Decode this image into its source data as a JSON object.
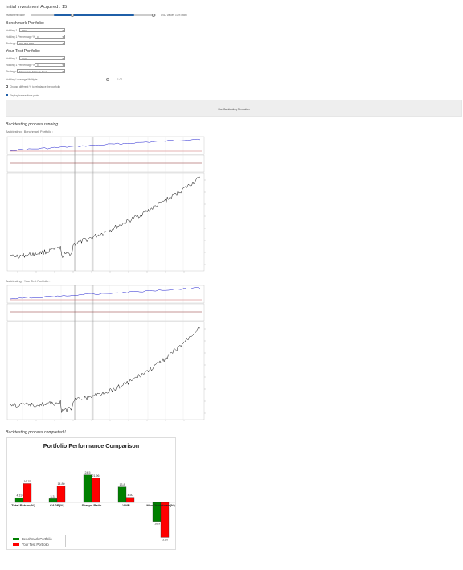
{
  "investment": {
    "title": "Initial Investment Acquired : 15",
    "slider_left_label": "investment value",
    "slider_right_label_a": "USD Values",
    "slider_right_label_b": "10% width",
    "fill_fraction": 0.52
  },
  "benchmark": {
    "heading": "Benchmark Portfolio:",
    "fields": [
      {
        "label": "Holding 1 :",
        "value": "SPY"
      },
      {
        "label": "Holding 1 Percentage % :",
        "value": "0"
      },
      {
        "label": "Strategy:",
        "value": "Buy and Hold"
      }
    ]
  },
  "test": {
    "heading": "Your Test Portfolio:",
    "fields": [
      {
        "label": "Holding 1 :",
        "value": "QQQ"
      },
      {
        "label": "Holding 1 Percentage % :",
        "value": "0"
      },
      {
        "label": "Strategy:",
        "value": "Momentum Strategy Mode"
      }
    ],
    "leverage_label": "Holding Leverage Multiple:",
    "leverage_value": "1.00",
    "leverage_fill_fraction": 0.6
  },
  "checkbox1": {
    "label": "Choose different % to rebalance the portfolio",
    "checked": false
  },
  "checkbox2": {
    "label": "Display transactions plots",
    "checked": true
  },
  "run_button": {
    "label": "Run Backtesting Simulation"
  },
  "status_running": "Backtesting process running....",
  "bench_title": "Backtesting : Benchmark Portfolio :",
  "test_title": "Backtesting : Your Test Portfolio :",
  "status_done": "Backtesting process completed !",
  "comparison": {
    "title": "Portfolio Performance Comparison",
    "categories": [
      "Total Return(%)",
      "CAGR(%)",
      "Sharpe Ratio",
      "VWR",
      "Max Drawdown(%)"
    ],
    "benchmark_values": [
      "4.19",
      "3.31",
      "24.5",
      "13.8",
      "-16.9"
    ],
    "test_values": [
      "16.79",
      "14.80",
      "21.96",
      "4.50",
      "-31.0"
    ],
    "legend_benchmark": "Benchmark Portfolio",
    "legend_test": "Your Test Portfolio",
    "colors": {
      "benchmark": "#008000",
      "test": "#ff0000"
    }
  },
  "chart_data": [
    {
      "type": "bar",
      "title": "Portfolio Performance Comparison",
      "categories": [
        "Total Return(%)",
        "CAGR(%)",
        "Sharpe Ratio",
        "VWR",
        "Max Drawdown(%)"
      ],
      "series": [
        {
          "name": "Benchmark Portfolio",
          "values": [
            4.19,
            3.31,
            24.5,
            13.8,
            -16.9
          ]
        },
        {
          "name": "Your Test Portfolio",
          "values": [
            16.79,
            14.8,
            21.96,
            4.5,
            -31.0
          ]
        }
      ]
    }
  ]
}
